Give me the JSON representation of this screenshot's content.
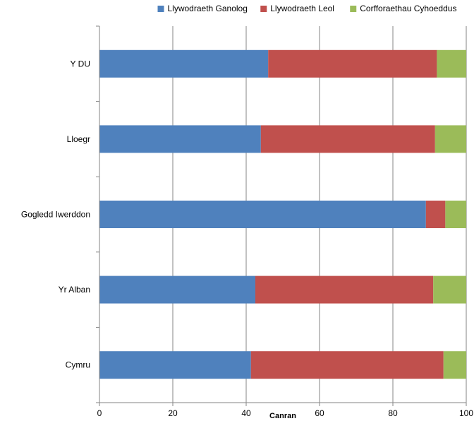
{
  "chart_data": {
    "type": "bar",
    "orientation": "horizontal",
    "stacked": true,
    "categories": [
      "Y DU",
      "Lloegr",
      "Gogledd Iwerddon",
      "Yr Alban",
      "Cymru"
    ],
    "series": [
      {
        "name": "Llywodraeth Ganolog",
        "values": [
          46,
          44,
          89,
          42.5,
          41.3
        ],
        "color": "#4f81bd"
      },
      {
        "name": "Llywodraeth Leol",
        "values": [
          46,
          47.5,
          5.3,
          48.5,
          52.5
        ],
        "color": "#c0504d"
      },
      {
        "name": "Corfforaethau Cyhoeddus",
        "values": [
          8,
          8.5,
          5.7,
          9,
          6.2
        ],
        "color": "#9bbb59"
      }
    ],
    "xlabel": "Canran",
    "ylabel": "",
    "xlim": [
      0,
      100
    ],
    "xticks": [
      "0",
      "20",
      "40",
      "60",
      "80",
      "100"
    ],
    "grid": "vertical",
    "legend_position": "top"
  }
}
